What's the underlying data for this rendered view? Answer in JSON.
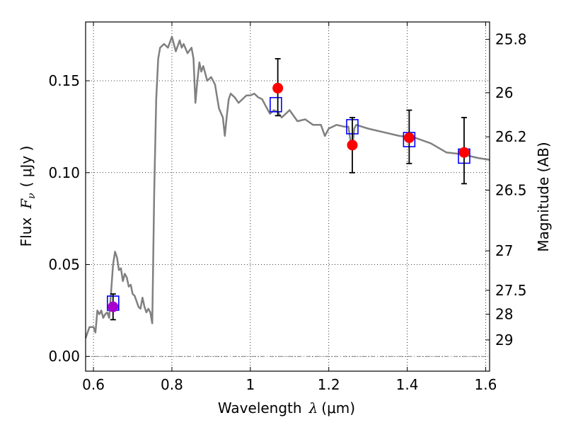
{
  "chart_data": {
    "type": "line",
    "xlabel": {
      "prefix": "Wavelength",
      "symbol": "λ",
      "unit": "(μm)"
    },
    "ylabel": {
      "prefix": "Flux",
      "symbol": "F",
      "subscript": "ν",
      "unit": "( μJy )"
    },
    "y2label": "Magnitude (AB)",
    "xlim": [
      0.58,
      1.61
    ],
    "ylim": [
      -0.008,
      0.182
    ],
    "xticks": [
      0.6,
      0.8,
      1.0,
      1.2,
      1.4,
      1.6
    ],
    "xtick_labels": [
      "0.6",
      "0.8",
      "1",
      "1.2",
      "1.4",
      "1.6"
    ],
    "yticks": [
      0.0,
      0.05,
      0.1,
      0.15
    ],
    "ytick_labels": [
      "0.00",
      "0.05",
      "0.10",
      "0.15"
    ],
    "y2ticks": [
      {
        "label": "25.8",
        "flux": 0.1725
      },
      {
        "label": "26",
        "flux": 0.1435
      },
      {
        "label": "26.2",
        "flux": 0.1195
      },
      {
        "label": "26.5",
        "flux": 0.0905
      },
      {
        "label": "27",
        "flux": 0.0575
      },
      {
        "label": "27.5",
        "flux": 0.036
      },
      {
        "label": "28",
        "flux": 0.023
      },
      {
        "label": "29",
        "flux": 0.009
      }
    ],
    "grid": true,
    "series": [
      {
        "kind": "line",
        "color": "#808080",
        "x": [
          0.58,
          0.59,
          0.6,
          0.605,
          0.61,
          0.615,
          0.62,
          0.625,
          0.63,
          0.635,
          0.64,
          0.645,
          0.65,
          0.655,
          0.66,
          0.665,
          0.67,
          0.675,
          0.68,
          0.685,
          0.69,
          0.695,
          0.7,
          0.705,
          0.71,
          0.715,
          0.72,
          0.725,
          0.73,
          0.735,
          0.74,
          0.745,
          0.75,
          0.755,
          0.76,
          0.765,
          0.77,
          0.78,
          0.79,
          0.8,
          0.81,
          0.82,
          0.825,
          0.83,
          0.84,
          0.85,
          0.855,
          0.86,
          0.865,
          0.87,
          0.875,
          0.88,
          0.89,
          0.9,
          0.91,
          0.92,
          0.93,
          0.935,
          0.94,
          0.945,
          0.95,
          0.96,
          0.97,
          0.98,
          0.99,
          1.0,
          1.01,
          1.02,
          1.03,
          1.04,
          1.05,
          1.06,
          1.07,
          1.08,
          1.09,
          1.1,
          1.12,
          1.14,
          1.16,
          1.18,
          1.19,
          1.2,
          1.22,
          1.24,
          1.25,
          1.255,
          1.26,
          1.265,
          1.27,
          1.3,
          1.34,
          1.38,
          1.42,
          1.46,
          1.5,
          1.54,
          1.58,
          1.61
        ],
        "y": [
          0.01,
          0.016,
          0.016,
          0.013,
          0.025,
          0.023,
          0.025,
          0.021,
          0.023,
          0.024,
          0.021,
          0.035,
          0.05,
          0.057,
          0.054,
          0.047,
          0.048,
          0.041,
          0.045,
          0.043,
          0.038,
          0.039,
          0.034,
          0.033,
          0.03,
          0.027,
          0.026,
          0.032,
          0.027,
          0.024,
          0.026,
          0.024,
          0.018,
          0.09,
          0.14,
          0.162,
          0.168,
          0.17,
          0.168,
          0.174,
          0.166,
          0.172,
          0.168,
          0.17,
          0.165,
          0.168,
          0.162,
          0.138,
          0.15,
          0.16,
          0.155,
          0.158,
          0.15,
          0.152,
          0.148,
          0.135,
          0.13,
          0.12,
          0.131,
          0.14,
          0.143,
          0.141,
          0.138,
          0.14,
          0.142,
          0.142,
          0.143,
          0.141,
          0.14,
          0.136,
          0.132,
          0.134,
          0.133,
          0.13,
          0.132,
          0.134,
          0.128,
          0.129,
          0.126,
          0.126,
          0.12,
          0.124,
          0.126,
          0.125,
          0.125,
          0.118,
          0.113,
          0.124,
          0.126,
          0.124,
          0.122,
          0.12,
          0.119,
          0.116,
          0.111,
          0.11,
          0.108,
          0.107
        ]
      },
      {
        "kind": "model-boxes",
        "colors": {
          "default": "#0000ff",
          "first": "#0000ff"
        },
        "x": [
          0.65,
          1.065,
          1.26,
          1.405,
          1.545
        ],
        "y": [
          0.029,
          0.137,
          0.125,
          0.118,
          0.109
        ]
      },
      {
        "kind": "observed-points",
        "colors": {
          "default": "#ff0000",
          "first": "#aa00cc"
        },
        "x": [
          0.65,
          1.07,
          1.26,
          1.405,
          1.545
        ],
        "y": [
          0.027,
          0.146,
          0.115,
          0.119,
          0.111
        ],
        "yerr_low": [
          0.02,
          0.131,
          0.1,
          0.105,
          0.094
        ],
        "yerr_high": [
          0.034,
          0.162,
          0.13,
          0.134,
          0.13
        ]
      }
    ],
    "zero_line": {
      "y": 0.0,
      "color": "#808080",
      "style": "dashdot"
    }
  }
}
